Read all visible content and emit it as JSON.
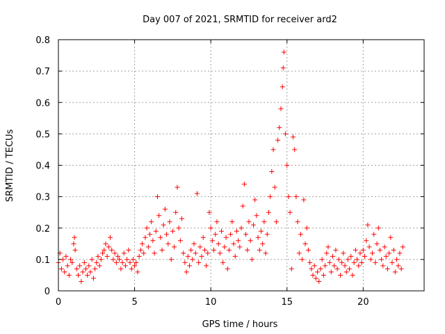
{
  "chart_data": {
    "type": "scatter",
    "title": "Day 007 of 2021, SRMTID for receiver ard2",
    "xlabel": "GPS time / hours",
    "ylabel": "SRMTID / TECUs",
    "xlim": [
      0,
      24
    ],
    "ylim": [
      0,
      0.8
    ],
    "x_ticks": [
      0,
      5,
      10,
      15,
      20
    ],
    "x_tick_labels": [
      "0",
      "5",
      "10",
      "15",
      "20"
    ],
    "y_ticks": [
      0,
      0.1,
      0.2,
      0.3,
      0.4,
      0.5,
      0.6,
      0.7,
      0.8
    ],
    "y_tick_labels": [
      "0",
      "0.1",
      "0.2",
      "0.3",
      "0.4",
      "0.5",
      "0.6",
      "0.7",
      "0.8"
    ],
    "grid": true,
    "marker": "+",
    "color": "#ff0000",
    "series": [
      {
        "name": "ard2",
        "points": [
          [
            0.0,
            0.09
          ],
          [
            0.1,
            0.12
          ],
          [
            0.2,
            0.07
          ],
          [
            0.3,
            0.1
          ],
          [
            0.4,
            0.06
          ],
          [
            0.5,
            0.11
          ],
          [
            0.6,
            0.08
          ],
          [
            0.7,
            0.05
          ],
          [
            0.8,
            0.1
          ],
          [
            0.9,
            0.09
          ],
          [
            1.0,
            0.15
          ],
          [
            1.05,
            0.17
          ],
          [
            1.1,
            0.13
          ],
          [
            1.2,
            0.07
          ],
          [
            1.3,
            0.05
          ],
          [
            1.4,
            0.08
          ],
          [
            1.5,
            0.03
          ],
          [
            1.6,
            0.06
          ],
          [
            1.7,
            0.09
          ],
          [
            1.8,
            0.07
          ],
          [
            1.9,
            0.05
          ],
          [
            2.0,
            0.08
          ],
          [
            2.1,
            0.06
          ],
          [
            2.2,
            0.1
          ],
          [
            2.3,
            0.04
          ],
          [
            2.4,
            0.07
          ],
          [
            2.5,
            0.09
          ],
          [
            2.6,
            0.11
          ],
          [
            2.7,
            0.08
          ],
          [
            2.8,
            0.1
          ],
          [
            2.9,
            0.12
          ],
          [
            3.0,
            0.13
          ],
          [
            3.1,
            0.15
          ],
          [
            3.2,
            0.11
          ],
          [
            3.3,
            0.14
          ],
          [
            3.4,
            0.17
          ],
          [
            3.5,
            0.13
          ],
          [
            3.6,
            0.1
          ],
          [
            3.7,
            0.12
          ],
          [
            3.8,
            0.09
          ],
          [
            3.9,
            0.11
          ],
          [
            4.0,
            0.1
          ],
          [
            4.1,
            0.07
          ],
          [
            4.2,
            0.09
          ],
          [
            4.3,
            0.12
          ],
          [
            4.4,
            0.08
          ],
          [
            4.5,
            0.1
          ],
          [
            4.6,
            0.13
          ],
          [
            4.7,
            0.09
          ],
          [
            4.8,
            0.07
          ],
          [
            4.9,
            0.1
          ],
          [
            5.0,
            0.08
          ],
          [
            5.1,
            0.09
          ],
          [
            5.2,
            0.06
          ],
          [
            5.3,
            0.11
          ],
          [
            5.4,
            0.13
          ],
          [
            5.5,
            0.15
          ],
          [
            5.6,
            0.12
          ],
          [
            5.7,
            0.17
          ],
          [
            5.8,
            0.2
          ],
          [
            5.9,
            0.14
          ],
          [
            6.0,
            0.18
          ],
          [
            6.1,
            0.22
          ],
          [
            6.2,
            0.16
          ],
          [
            6.3,
            0.12
          ],
          [
            6.4,
            0.19
          ],
          [
            6.5,
            0.3
          ],
          [
            6.6,
            0.24
          ],
          [
            6.7,
            0.17
          ],
          [
            6.8,
            0.13
          ],
          [
            6.9,
            0.21
          ],
          [
            7.0,
            0.26
          ],
          [
            7.1,
            0.18
          ],
          [
            7.2,
            0.15
          ],
          [
            7.3,
            0.22
          ],
          [
            7.4,
            0.1
          ],
          [
            7.5,
            0.19
          ],
          [
            7.6,
            0.14
          ],
          [
            7.7,
            0.25
          ],
          [
            7.8,
            0.33
          ],
          [
            7.9,
            0.2
          ],
          [
            8.0,
            0.16
          ],
          [
            8.1,
            0.23
          ],
          [
            8.2,
            0.12
          ],
          [
            8.3,
            0.09
          ],
          [
            8.4,
            0.06
          ],
          [
            8.5,
            0.11
          ],
          [
            8.6,
            0.08
          ],
          [
            8.7,
            0.13
          ],
          [
            8.8,
            0.1
          ],
          [
            8.9,
            0.15
          ],
          [
            9.0,
            0.12
          ],
          [
            9.1,
            0.31
          ],
          [
            9.2,
            0.09
          ],
          [
            9.3,
            0.14
          ],
          [
            9.4,
            0.11
          ],
          [
            9.5,
            0.17
          ],
          [
            9.6,
            0.13
          ],
          [
            9.7,
            0.08
          ],
          [
            9.8,
            0.12
          ],
          [
            9.9,
            0.25
          ],
          [
            10.0,
            0.2
          ],
          [
            10.1,
            0.16
          ],
          [
            10.2,
            0.13
          ],
          [
            10.3,
            0.18
          ],
          [
            10.4,
            0.22
          ],
          [
            10.5,
            0.15
          ],
          [
            10.6,
            0.12
          ],
          [
            10.7,
            0.19
          ],
          [
            10.8,
            0.09
          ],
          [
            10.9,
            0.14
          ],
          [
            11.0,
            0.17
          ],
          [
            11.1,
            0.07
          ],
          [
            11.2,
            0.13
          ],
          [
            11.3,
            0.18
          ],
          [
            11.4,
            0.22
          ],
          [
            11.5,
            0.15
          ],
          [
            11.6,
            0.11
          ],
          [
            11.7,
            0.19
          ],
          [
            11.8,
            0.16
          ],
          [
            11.9,
            0.14
          ],
          [
            12.0,
            0.2
          ],
          [
            12.1,
            0.27
          ],
          [
            12.2,
            0.34
          ],
          [
            12.3,
            0.18
          ],
          [
            12.4,
            0.13
          ],
          [
            12.5,
            0.22
          ],
          [
            12.6,
            0.16
          ],
          [
            12.7,
            0.1
          ],
          [
            12.8,
            0.21
          ],
          [
            12.9,
            0.29
          ],
          [
            13.0,
            0.24
          ],
          [
            13.1,
            0.17
          ],
          [
            13.2,
            0.13
          ],
          [
            13.3,
            0.19
          ],
          [
            13.4,
            0.15
          ],
          [
            13.5,
            0.22
          ],
          [
            13.6,
            0.12
          ],
          [
            13.7,
            0.18
          ],
          [
            13.8,
            0.25
          ],
          [
            13.9,
            0.3
          ],
          [
            14.0,
            0.38
          ],
          [
            14.1,
            0.45
          ],
          [
            14.2,
            0.33
          ],
          [
            14.3,
            0.22
          ],
          [
            14.4,
            0.48
          ],
          [
            14.5,
            0.52
          ],
          [
            14.6,
            0.58
          ],
          [
            14.7,
            0.65
          ],
          [
            14.75,
            0.71
          ],
          [
            14.8,
            0.76
          ],
          [
            14.9,
            0.5
          ],
          [
            15.0,
            0.4
          ],
          [
            15.1,
            0.3
          ],
          [
            15.2,
            0.25
          ],
          [
            15.3,
            0.07
          ],
          [
            15.4,
            0.49
          ],
          [
            15.5,
            0.45
          ],
          [
            15.6,
            0.3
          ],
          [
            15.7,
            0.22
          ],
          [
            15.8,
            0.12
          ],
          [
            15.9,
            0.18
          ],
          [
            16.0,
            0.1
          ],
          [
            16.1,
            0.29
          ],
          [
            16.2,
            0.15
          ],
          [
            16.3,
            0.2
          ],
          [
            16.4,
            0.13
          ],
          [
            16.5,
            0.09
          ],
          [
            16.6,
            0.07
          ],
          [
            16.7,
            0.05
          ],
          [
            16.8,
            0.08
          ],
          [
            16.9,
            0.04
          ],
          [
            17.0,
            0.06
          ],
          [
            17.1,
            0.03
          ],
          [
            17.2,
            0.07
          ],
          [
            17.3,
            0.1
          ],
          [
            17.4,
            0.05
          ],
          [
            17.5,
            0.08
          ],
          [
            17.6,
            0.12
          ],
          [
            17.7,
            0.14
          ],
          [
            17.8,
            0.09
          ],
          [
            17.9,
            0.06
          ],
          [
            18.0,
            0.11
          ],
          [
            18.1,
            0.08
          ],
          [
            18.2,
            0.13
          ],
          [
            18.3,
            0.07
          ],
          [
            18.4,
            0.1
          ],
          [
            18.5,
            0.05
          ],
          [
            18.6,
            0.09
          ],
          [
            18.7,
            0.12
          ],
          [
            18.8,
            0.08
          ],
          [
            18.9,
            0.06
          ],
          [
            19.0,
            0.1
          ],
          [
            19.1,
            0.07
          ],
          [
            19.2,
            0.11
          ],
          [
            19.3,
            0.05
          ],
          [
            19.4,
            0.09
          ],
          [
            19.5,
            0.13
          ],
          [
            19.6,
            0.1
          ],
          [
            19.7,
            0.08
          ],
          [
            19.8,
            0.12
          ],
          [
            19.9,
            0.09
          ],
          [
            20.0,
            0.13
          ],
          [
            20.1,
            0.11
          ],
          [
            20.2,
            0.16
          ],
          [
            20.3,
            0.21
          ],
          [
            20.4,
            0.14
          ],
          [
            20.5,
            0.1
          ],
          [
            20.6,
            0.12
          ],
          [
            20.7,
            0.18
          ],
          [
            20.8,
            0.09
          ],
          [
            20.9,
            0.15
          ],
          [
            21.0,
            0.2
          ],
          [
            21.1,
            0.13
          ],
          [
            21.2,
            0.1
          ],
          [
            21.3,
            0.08
          ],
          [
            21.4,
            0.14
          ],
          [
            21.5,
            0.11
          ],
          [
            21.6,
            0.07
          ],
          [
            21.7,
            0.12
          ],
          [
            21.8,
            0.17
          ],
          [
            21.9,
            0.09
          ],
          [
            22.0,
            0.13
          ],
          [
            22.1,
            0.06
          ],
          [
            22.2,
            0.1
          ],
          [
            22.3,
            0.08
          ],
          [
            22.4,
            0.12
          ],
          [
            22.5,
            0.07
          ],
          [
            22.6,
            0.14
          ]
        ]
      }
    ]
  }
}
